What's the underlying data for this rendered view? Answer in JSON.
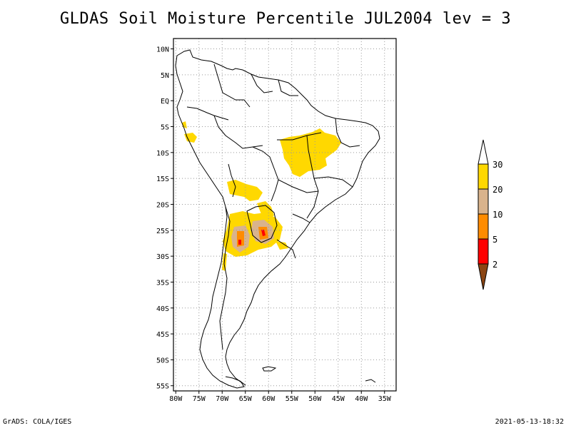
{
  "title": "GLDAS Soil Moisture Percentile JUL2004 lev = 3",
  "map": {
    "lat_labels": [
      "10N",
      "5N",
      "EQ",
      "5S",
      "10S",
      "15S",
      "20S",
      "25S",
      "30S",
      "35S",
      "40S",
      "45S",
      "50S",
      "55S"
    ],
    "lat_values": [
      10,
      5,
      0,
      -5,
      -10,
      -15,
      -20,
      -25,
      -30,
      -35,
      -40,
      -45,
      -50,
      -55
    ],
    "lon_labels": [
      "80W",
      "75W",
      "70W",
      "65W",
      "60W",
      "55W",
      "50W",
      "45W",
      "40W",
      "35W"
    ],
    "lon_values": [
      -80,
      -75,
      -70,
      -65,
      -60,
      -55,
      -50,
      -45,
      -40,
      -35
    ],
    "lon_range": [
      -80.5,
      -32.5
    ],
    "lat_range": [
      -56,
      12
    ],
    "grid": true
  },
  "colorbar": {
    "labels": [
      "30",
      "20",
      "10",
      "5",
      "2"
    ],
    "colors": [
      "#ffd800",
      "#d9b38c",
      "#ff8c00",
      "#ff0000",
      "#8b4513"
    ]
  },
  "footer": {
    "left": "GrADS: COLA/IGES",
    "right": "2021-05-13-18:32"
  }
}
